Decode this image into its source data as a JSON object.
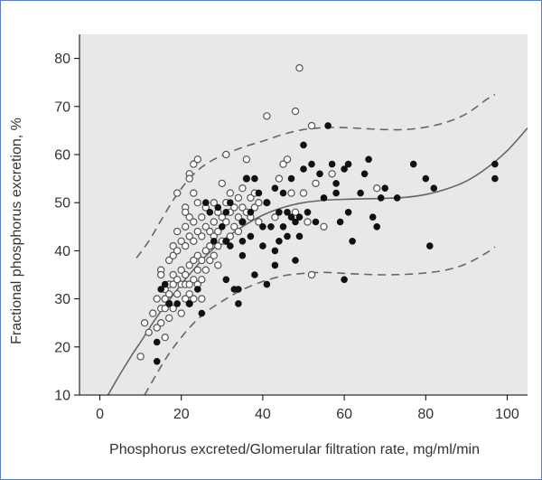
{
  "chart_data": {
    "type": "scatter",
    "xlabel": "Phosphorus excreted/Glomerular filtration rate, mg/ml/min",
    "ylabel": "Fractional phosphorus excretion, %",
    "xlim": [
      -5,
      105
    ],
    "ylim": [
      10,
      85
    ],
    "xticks": [
      0,
      20,
      40,
      60,
      80,
      100
    ],
    "yticks": [
      10,
      20,
      30,
      40,
      50,
      60,
      70,
      80
    ],
    "grid": false,
    "colors": {
      "plot_background": "#e8e8e8",
      "line": "#666666",
      "open_marker_stroke": "#555555",
      "filled_marker": "#111111"
    },
    "series": [
      {
        "marker": "open-circle",
        "points": [
          [
            10,
            18
          ],
          [
            11,
            25
          ],
          [
            12,
            23
          ],
          [
            13,
            27
          ],
          [
            14,
            30
          ],
          [
            14,
            24
          ],
          [
            15,
            36
          ],
          [
            15,
            35
          ],
          [
            15,
            28
          ],
          [
            15,
            25
          ],
          [
            16,
            32
          ],
          [
            16,
            30
          ],
          [
            16,
            28
          ],
          [
            16,
            22
          ],
          [
            17,
            38
          ],
          [
            17,
            33
          ],
          [
            17,
            31
          ],
          [
            17,
            29
          ],
          [
            17,
            26
          ],
          [
            18,
            39
          ],
          [
            18,
            41
          ],
          [
            18,
            35
          ],
          [
            18,
            33
          ],
          [
            18,
            28
          ],
          [
            19,
            52
          ],
          [
            19,
            44
          ],
          [
            19,
            40
          ],
          [
            19,
            34
          ],
          [
            19,
            31
          ],
          [
            20,
            42
          ],
          [
            20,
            36
          ],
          [
            20,
            33
          ],
          [
            20,
            27
          ],
          [
            21,
            49
          ],
          [
            21,
            48
          ],
          [
            21,
            45
          ],
          [
            21,
            41
          ],
          [
            21,
            35
          ],
          [
            21,
            33
          ],
          [
            21,
            30
          ],
          [
            22,
            56
          ],
          [
            22,
            55
          ],
          [
            22,
            47
          ],
          [
            22,
            43
          ],
          [
            22,
            37
          ],
          [
            22,
            33
          ],
          [
            22,
            31
          ],
          [
            22,
            29
          ],
          [
            23,
            58
          ],
          [
            23,
            52
          ],
          [
            23,
            46
          ],
          [
            23,
            42
          ],
          [
            23,
            38
          ],
          [
            23,
            34
          ],
          [
            23,
            30
          ],
          [
            24,
            59
          ],
          [
            24,
            50
          ],
          [
            24,
            44
          ],
          [
            24,
            39
          ],
          [
            24,
            36
          ],
          [
            24,
            33
          ],
          [
            25,
            47
          ],
          [
            25,
            43
          ],
          [
            25,
            38
          ],
          [
            25,
            34
          ],
          [
            25,
            30
          ],
          [
            26,
            49
          ],
          [
            26,
            45
          ],
          [
            26,
            40
          ],
          [
            26,
            36
          ],
          [
            27,
            44
          ],
          [
            27,
            41
          ],
          [
            27,
            38
          ],
          [
            28,
            50
          ],
          [
            28,
            46
          ],
          [
            28,
            43
          ],
          [
            28,
            39
          ],
          [
            29,
            48
          ],
          [
            29,
            44
          ],
          [
            29,
            41
          ],
          [
            29,
            37
          ],
          [
            30,
            54
          ],
          [
            30,
            47
          ],
          [
            30,
            42
          ],
          [
            31,
            60
          ],
          [
            31,
            50
          ],
          [
            31,
            46
          ],
          [
            31,
            42
          ],
          [
            32,
            52
          ],
          [
            32,
            48
          ],
          [
            32,
            43
          ],
          [
            33,
            49
          ],
          [
            33,
            45
          ],
          [
            34,
            51
          ],
          [
            34,
            47
          ],
          [
            34,
            44
          ],
          [
            35,
            53
          ],
          [
            35,
            49
          ],
          [
            35,
            46
          ],
          [
            36,
            59
          ],
          [
            36,
            55
          ],
          [
            36,
            48
          ],
          [
            37,
            51
          ],
          [
            37,
            47
          ],
          [
            38,
            52
          ],
          [
            38,
            49
          ],
          [
            39,
            50
          ],
          [
            39,
            46
          ],
          [
            41,
            68
          ],
          [
            41,
            50
          ],
          [
            43,
            47
          ],
          [
            44,
            55
          ],
          [
            45,
            58
          ],
          [
            46,
            59
          ],
          [
            47,
            52
          ],
          [
            48,
            69
          ],
          [
            48,
            48
          ],
          [
            49,
            78
          ],
          [
            50,
            52
          ],
          [
            51,
            46
          ],
          [
            52,
            66
          ],
          [
            52,
            35
          ],
          [
            53,
            54
          ],
          [
            55,
            45
          ],
          [
            57,
            56
          ],
          [
            68,
            53
          ]
        ]
      },
      {
        "marker": "filled-circle",
        "points": [
          [
            14,
            21
          ],
          [
            14,
            17
          ],
          [
            15,
            32
          ],
          [
            16,
            33
          ],
          [
            17,
            29
          ],
          [
            19,
            29
          ],
          [
            22,
            29
          ],
          [
            24,
            32
          ],
          [
            25,
            27
          ],
          [
            26,
            50
          ],
          [
            27,
            48
          ],
          [
            28,
            42
          ],
          [
            29,
            49
          ],
          [
            30,
            45
          ],
          [
            31,
            48
          ],
          [
            31,
            42
          ],
          [
            31,
            34
          ],
          [
            32,
            41
          ],
          [
            32,
            50
          ],
          [
            33,
            32
          ],
          [
            34,
            29
          ],
          [
            34,
            32
          ],
          [
            35,
            46
          ],
          [
            35,
            42
          ],
          [
            35,
            39
          ],
          [
            36,
            55
          ],
          [
            37,
            48
          ],
          [
            37,
            43
          ],
          [
            38,
            55
          ],
          [
            38,
            35
          ],
          [
            39,
            52
          ],
          [
            40,
            45
          ],
          [
            40,
            41
          ],
          [
            41,
            50
          ],
          [
            41,
            33
          ],
          [
            42,
            45
          ],
          [
            43,
            53
          ],
          [
            43,
            40
          ],
          [
            43,
            37
          ],
          [
            44,
            48
          ],
          [
            44,
            42
          ],
          [
            45,
            52
          ],
          [
            45,
            45
          ],
          [
            46,
            48
          ],
          [
            46,
            43
          ],
          [
            47,
            55
          ],
          [
            47,
            47
          ],
          [
            48,
            38
          ],
          [
            48,
            46
          ],
          [
            49,
            47
          ],
          [
            49,
            43
          ],
          [
            50,
            62
          ],
          [
            50,
            57
          ],
          [
            51,
            48
          ],
          [
            52,
            58
          ],
          [
            53,
            46
          ],
          [
            54,
            56
          ],
          [
            55,
            51
          ],
          [
            56,
            66
          ],
          [
            57,
            58
          ],
          [
            58,
            54
          ],
          [
            58,
            52
          ],
          [
            59,
            46
          ],
          [
            60,
            57
          ],
          [
            60,
            34
          ],
          [
            61,
            58
          ],
          [
            61,
            48
          ],
          [
            62,
            42
          ],
          [
            64,
            52
          ],
          [
            65,
            56
          ],
          [
            66,
            59
          ],
          [
            67,
            47
          ],
          [
            68,
            45
          ],
          [
            69,
            51
          ],
          [
            70,
            53
          ],
          [
            73,
            51
          ],
          [
            77,
            58
          ],
          [
            80,
            55
          ],
          [
            81,
            41
          ],
          [
            82,
            53
          ],
          [
            97,
            58
          ],
          [
            97,
            55
          ]
        ]
      }
    ],
    "fit_line": {
      "style": "solid",
      "x": [
        2,
        5,
        8,
        10,
        13,
        16,
        20,
        25,
        30,
        35,
        40,
        45,
        50,
        55,
        60,
        65,
        70,
        75,
        80,
        85,
        90,
        95,
        100,
        105
      ],
      "y": [
        10,
        14.4,
        18.5,
        21,
        25,
        28.6,
        33,
        38,
        42,
        45,
        47.4,
        49,
        50,
        50.5,
        50.7,
        50.8,
        50.9,
        51.1,
        51.7,
        52.8,
        54.5,
        57.2,
        60.8,
        65.5
      ]
    },
    "band_upper": {
      "style": "dashed",
      "x": [
        9,
        12,
        15,
        18,
        21,
        24,
        27,
        30,
        35,
        40,
        45,
        50,
        55,
        60,
        65,
        70,
        75,
        80,
        85,
        90,
        95,
        97
      ],
      "y": [
        38.5,
        42,
        46.3,
        50.5,
        54,
        56.7,
        58.5,
        59.8,
        61.5,
        62.8,
        64.2,
        65.2,
        65.6,
        65.6,
        65.4,
        65.2,
        65.2,
        65.7,
        66.7,
        68.5,
        71.5,
        72.5
      ]
    },
    "band_lower": {
      "style": "dashed",
      "x": [
        11,
        14,
        17,
        20,
        23,
        26,
        30,
        35,
        40,
        45,
        50,
        55,
        60,
        65,
        70,
        75,
        80,
        85,
        90,
        95,
        97
      ],
      "y": [
        10,
        14.5,
        18.6,
        22,
        24.9,
        27.2,
        29.5,
        31.9,
        33.6,
        34.8,
        35.3,
        35.5,
        35.3,
        35.1,
        35,
        35.1,
        35.4,
        36,
        37.3,
        39.6,
        40.8
      ]
    }
  }
}
